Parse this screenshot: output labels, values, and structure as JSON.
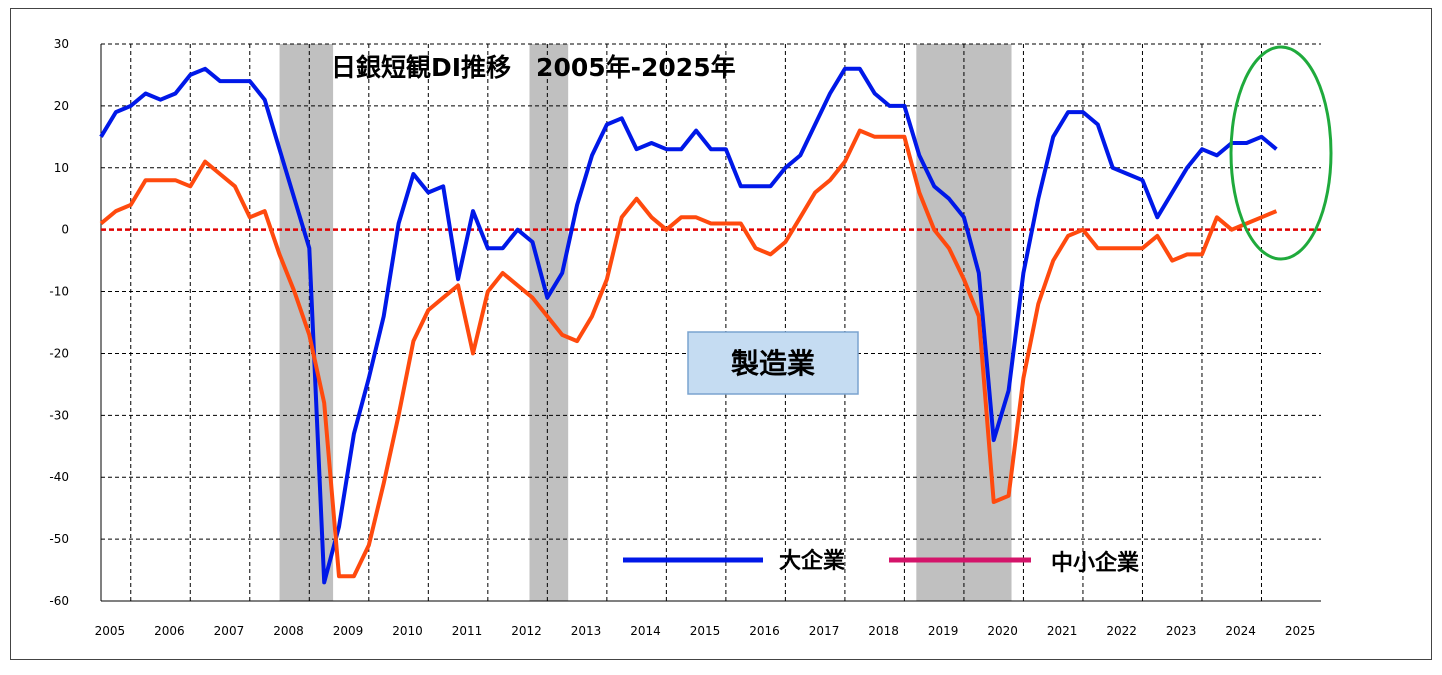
{
  "chart_data": {
    "type": "line",
    "title": "日銀短観DI推移　2005年-2025年",
    "label_box": "製造業",
    "x_tick_labels": [
      "2005",
      "2006",
      "2007",
      "2008",
      "2009",
      "2010",
      "2011",
      "2012",
      "2013",
      "2014",
      "2015",
      "2016",
      "2017",
      "2018",
      "2019",
      "2020",
      "2021",
      "2022",
      "2023",
      "2024",
      "2025"
    ],
    "y_tick_labels": [
      "30",
      "20",
      "10",
      "0",
      "-10",
      "-20",
      "-30",
      "-40",
      "-50",
      "-60"
    ],
    "xlim": [
      2005,
      2025.5
    ],
    "ylim": [
      -60,
      30
    ],
    "grid": true,
    "zero_line_color": "#e00000",
    "shaded_periods": [
      [
        2008.0,
        2008.9
      ],
      [
        2012.2,
        2012.85
      ],
      [
        2018.7,
        2020.3
      ]
    ],
    "series": [
      {
        "name": "大企業",
        "color": "#0018e8",
        "x": [
          2005.0,
          2005.25,
          2005.5,
          2005.75,
          2006.0,
          2006.25,
          2006.5,
          2006.75,
          2007.0,
          2007.25,
          2007.5,
          2007.75,
          2008.0,
          2008.25,
          2008.5,
          2008.75,
          2009.0,
          2009.25,
          2009.5,
          2009.75,
          2010.0,
          2010.25,
          2010.5,
          2010.75,
          2011.0,
          2011.25,
          2011.5,
          2011.75,
          2012.0,
          2012.25,
          2012.5,
          2012.75,
          2013.0,
          2013.25,
          2013.5,
          2013.75,
          2014.0,
          2014.25,
          2014.5,
          2014.75,
          2015.0,
          2015.25,
          2015.5,
          2015.75,
          2016.0,
          2016.25,
          2016.5,
          2016.75,
          2017.0,
          2017.25,
          2017.5,
          2017.75,
          2018.0,
          2018.25,
          2018.5,
          2018.75,
          2019.0,
          2019.25,
          2019.5,
          2019.75,
          2020.0,
          2020.25,
          2020.5,
          2020.75,
          2021.0,
          2021.25,
          2021.5,
          2021.75,
          2022.0,
          2022.25,
          2022.5,
          2022.75,
          2023.0,
          2023.25,
          2023.5,
          2023.75,
          2024.0,
          2024.25,
          2024.5,
          2024.75
        ],
        "values": [
          15,
          19,
          20,
          22,
          21,
          22,
          25,
          26,
          24,
          24,
          24,
          21,
          13,
          5,
          -3,
          -57,
          -48,
          -33,
          -24,
          -14,
          1,
          9,
          6,
          7,
          -8,
          3,
          -3,
          -3,
          0,
          -2,
          -11,
          -7,
          4,
          12,
          17,
          18,
          13,
          14,
          13,
          13,
          16,
          13,
          13,
          7,
          7,
          7,
          10,
          12,
          17,
          22,
          26,
          26,
          22,
          20,
          20,
          12,
          7,
          5,
          2,
          -7,
          -34,
          -26,
          -7,
          5,
          15,
          19,
          19,
          17,
          10,
          9,
          8,
          2,
          6,
          10,
          13,
          12,
          14,
          14,
          15,
          13
        ]
      },
      {
        "name": "中小企業",
        "color": "#ff4a0e",
        "x": [
          2005.0,
          2005.25,
          2005.5,
          2005.75,
          2006.0,
          2006.25,
          2006.5,
          2006.75,
          2007.0,
          2007.25,
          2007.5,
          2007.75,
          2008.0,
          2008.25,
          2008.5,
          2008.75,
          2009.0,
          2009.25,
          2009.5,
          2009.75,
          2010.0,
          2010.25,
          2010.5,
          2010.75,
          2011.0,
          2011.25,
          2011.5,
          2011.75,
          2012.0,
          2012.25,
          2012.5,
          2012.75,
          2013.0,
          2013.25,
          2013.5,
          2013.75,
          2014.0,
          2014.25,
          2014.5,
          2014.75,
          2015.0,
          2015.25,
          2015.5,
          2015.75,
          2016.0,
          2016.25,
          2016.5,
          2016.75,
          2017.0,
          2017.25,
          2017.5,
          2017.75,
          2018.0,
          2018.25,
          2018.5,
          2018.75,
          2019.0,
          2019.25,
          2019.5,
          2019.75,
          2020.0,
          2020.25,
          2020.5,
          2020.75,
          2021.0,
          2021.25,
          2021.5,
          2021.75,
          2022.0,
          2022.25,
          2022.5,
          2022.75,
          2023.0,
          2023.25,
          2023.5,
          2023.75,
          2024.0,
          2024.25,
          2024.5,
          2024.75
        ],
        "values": [
          1,
          3,
          4,
          8,
          8,
          8,
          7,
          11,
          9,
          7,
          2,
          3,
          -4,
          -10,
          -17,
          -28,
          -56,
          -56,
          -51,
          -41,
          -30,
          -18,
          -13,
          -11,
          -9,
          -20,
          -10,
          -7,
          -9,
          -11,
          -14,
          -17,
          -18,
          -14,
          -8,
          2,
          5,
          2,
          0,
          2,
          2,
          1,
          1,
          1,
          -3,
          -4,
          -2,
          2,
          6,
          8,
          11,
          16,
          15,
          15,
          15,
          6,
          0,
          -3,
          -8,
          -14,
          -44,
          -43,
          -24,
          -12,
          -5,
          -1,
          0,
          -3,
          -3,
          -3,
          -3,
          -1,
          -5,
          -4,
          -4,
          2,
          0,
          1,
          2,
          3
        ]
      }
    ]
  }
}
